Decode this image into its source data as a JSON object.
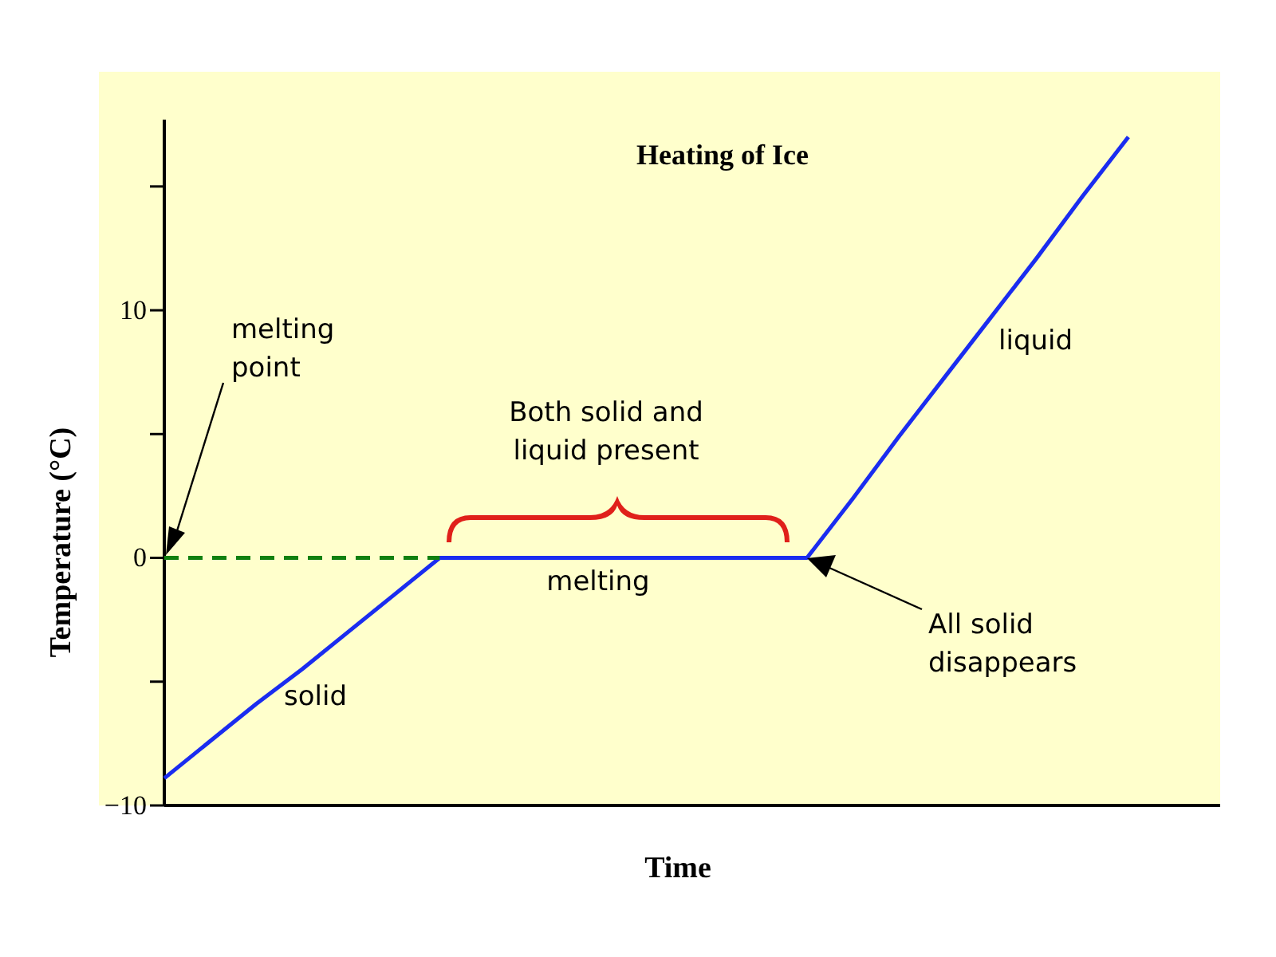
{
  "chart_data": {
    "type": "line",
    "title": "Heating of Ice",
    "xlabel": "Time",
    "ylabel": "Temperature (°C)",
    "categories": [
      null,
      null,
      null,
      null,
      null,
      null,
      null,
      null,
      null,
      null,
      null,
      null,
      null,
      null,
      null,
      null,
      null,
      null,
      null,
      null,
      null,
      null,
      null,
      null
    ],
    "series": [
      {
        "color": "#1a2cf0",
        "line_style": "solid",
        "values": [
          -8.9,
          -7.4,
          -5.9,
          -4.5,
          -3.0,
          -1.5,
          0,
          0,
          0,
          0,
          0,
          0,
          0,
          0,
          0,
          2.4,
          4.9,
          7.3,
          9.7,
          12.1,
          14.6,
          17,
          null,
          null
        ]
      },
      {
        "color": "#108010",
        "line_style": "dashed",
        "values": [
          0,
          0,
          0,
          0,
          0,
          0,
          0,
          null,
          null,
          null,
          null,
          null,
          null,
          null,
          null,
          null,
          null,
          null,
          null,
          null,
          null,
          null,
          null,
          null
        ]
      }
    ],
    "ylim": [
      -10,
      17.7
    ],
    "yticks": [
      {
        "value": -10,
        "label": "−10"
      },
      {
        "value": -5,
        "label": null
      },
      0,
      {
        "value": 5,
        "label": null
      },
      10,
      {
        "value": 15,
        "label": null
      }
    ],
    "tick_labels": "y",
    "grid": false,
    "marker": "none",
    "annotations": [
      {
        "text": "melting\npoint"
      },
      {
        "text": "solid"
      },
      {
        "text": "Both solid and\nliquid present"
      },
      {
        "text": "melting"
      },
      {
        "text": "All solid\ndisappears"
      },
      {
        "text": "liquid"
      }
    ]
  }
}
